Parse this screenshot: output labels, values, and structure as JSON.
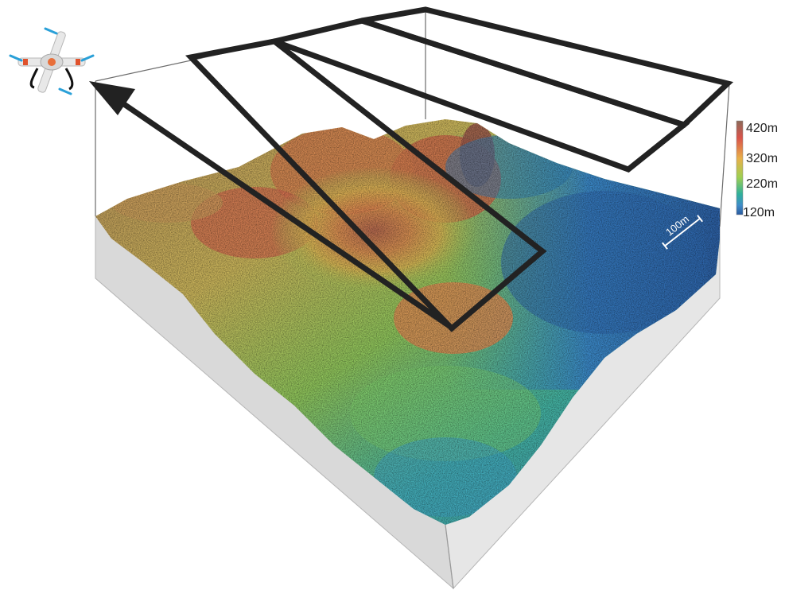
{
  "colorbar": {
    "ticks": [
      "420m",
      "320m",
      "220m",
      "120m"
    ],
    "colors": [
      "#8c6a5a",
      "#d9534a",
      "#e8b04a",
      "#9fcf52",
      "#2fb09b",
      "#3f8cc8",
      "#2a5a9e"
    ]
  },
  "scale_bar": {
    "label": "100m"
  },
  "terrain": {
    "peak_colors": [
      "#c96a4a",
      "#d89a52",
      "#bfbf5a"
    ],
    "low_colors": [
      "#2f79b8",
      "#3fa0b0",
      "#6fc0a0"
    ]
  },
  "icons": {
    "drone": "drone-icon",
    "arrow": "flight-direction-arrow"
  }
}
